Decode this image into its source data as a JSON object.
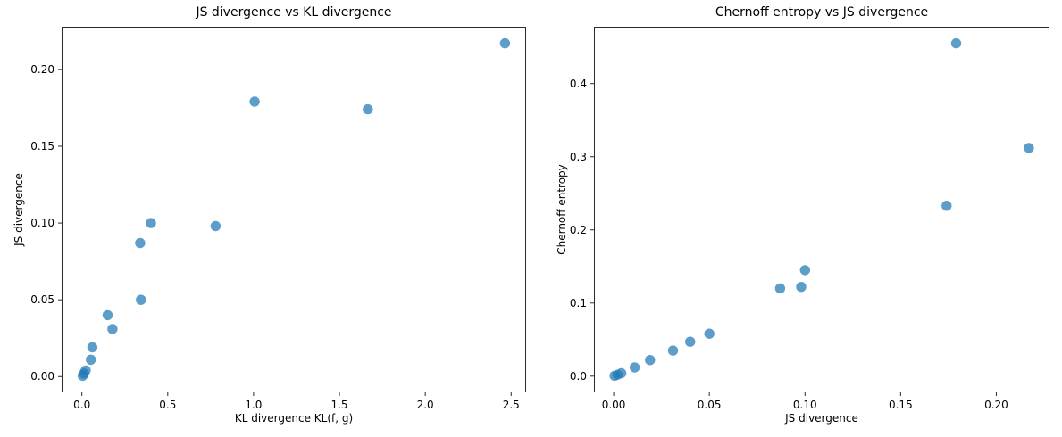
{
  "page": {
    "background_color": "#ffffff",
    "text_color": "#000000"
  },
  "chart_data": [
    {
      "type": "scatter",
      "title": "JS divergence vs KL divergence",
      "xlabel": "KL divergence KL(f, g)",
      "ylabel": "JS divergence",
      "xlim": [
        -0.118,
        2.587
      ],
      "ylim": [
        -0.0103,
        0.2278
      ],
      "xticks": {
        "values": [
          0.0,
          0.5,
          1.0,
          1.5,
          2.0,
          2.5
        ],
        "labels": [
          "0.0",
          "0.5",
          "1.0",
          "1.5",
          "2.0",
          "2.5"
        ]
      },
      "yticks": {
        "values": [
          0.0,
          0.05,
          0.1,
          0.15,
          0.2
        ],
        "labels": [
          "0.00",
          "0.05",
          "0.10",
          "0.15",
          "0.20"
        ]
      },
      "x": [
        0.005,
        0.012,
        0.022,
        0.052,
        0.061,
        0.15,
        0.178,
        0.339,
        0.344,
        0.402,
        0.779,
        1.006,
        1.665,
        2.464
      ],
      "y": [
        0.0005,
        0.002,
        0.004,
        0.011,
        0.019,
        0.04,
        0.031,
        0.087,
        0.05,
        0.1,
        0.098,
        0.179,
        0.174,
        0.217
      ],
      "marker": {
        "color": "#1f77b4",
        "alpha": 0.72,
        "radius_px": 5.7
      },
      "grid": false,
      "legend": null
    },
    {
      "type": "scatter",
      "title": "Chernoff entropy vs JS divergence",
      "xlabel": "JS divergence",
      "ylabel": "Chernoff entropy",
      "xlim": [
        -0.0103,
        0.2278
      ],
      "ylim": [
        -0.0222,
        0.4777
      ],
      "xticks": {
        "values": [
          0.0,
          0.05,
          0.1,
          0.15,
          0.2
        ],
        "labels": [
          "0.00",
          "0.05",
          "0.10",
          "0.15",
          "0.20"
        ]
      },
      "yticks": {
        "values": [
          0.0,
          0.1,
          0.2,
          0.3,
          0.4
        ],
        "labels": [
          "0.0",
          "0.1",
          "0.2",
          "0.3",
          "0.4"
        ]
      },
      "x": [
        0.0005,
        0.002,
        0.004,
        0.011,
        0.019,
        0.04,
        0.031,
        0.087,
        0.05,
        0.1,
        0.098,
        0.179,
        0.174,
        0.217
      ],
      "y": [
        0.0005,
        0.002,
        0.004,
        0.012,
        0.022,
        0.047,
        0.035,
        0.12,
        0.058,
        0.145,
        0.122,
        0.455,
        0.233,
        0.312
      ],
      "marker": {
        "color": "#1f77b4",
        "alpha": 0.72,
        "radius_px": 5.7
      },
      "grid": false,
      "legend": null
    }
  ]
}
